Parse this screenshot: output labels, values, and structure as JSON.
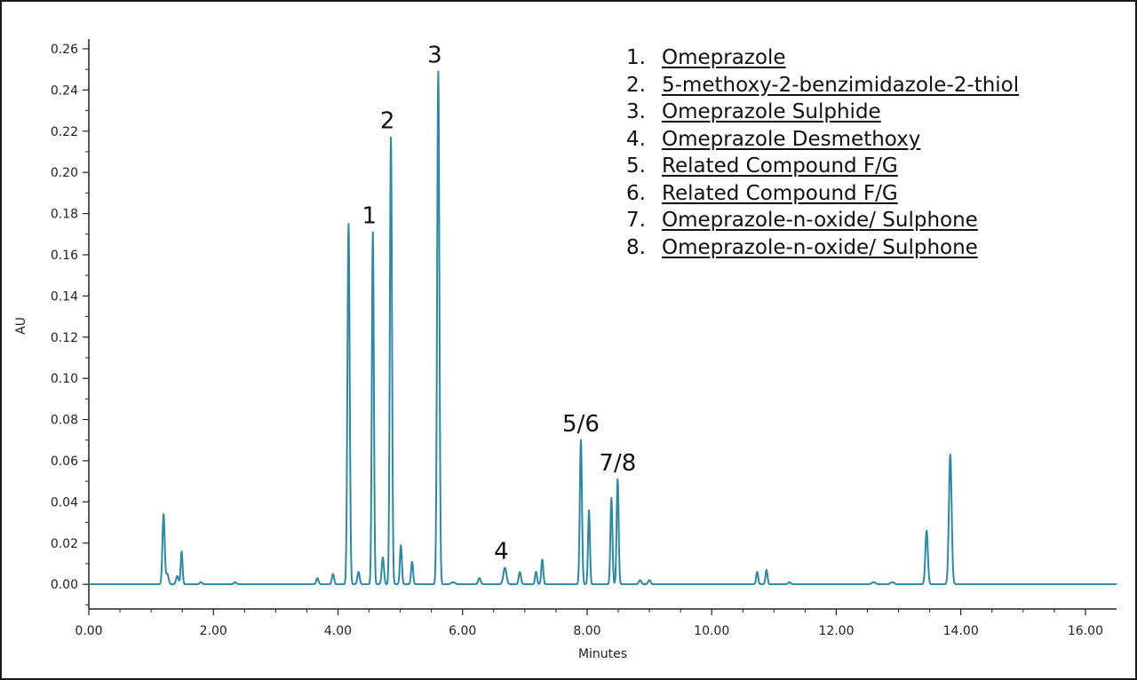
{
  "chart_data": {
    "type": "line",
    "xlabel": "Minutes",
    "ylabel": "AU",
    "xlim": [
      0,
      16.5
    ],
    "ylim": [
      -0.012,
      0.263
    ],
    "x_ticks": [
      "0.00",
      "2.00",
      "4.00",
      "6.00",
      "8.00",
      "10.00",
      "12.00",
      "14.00",
      "16.00"
    ],
    "y_ticks": [
      "0.00",
      "0.02",
      "0.04",
      "0.06",
      "0.08",
      "0.10",
      "0.12",
      "0.14",
      "0.16",
      "0.18",
      "0.20",
      "0.22",
      "0.24",
      "0.26"
    ],
    "line_color": "#2a8aa6",
    "baseline": 0.0,
    "peaks": [
      {
        "x": 1.2,
        "y": 0.034,
        "w": 0.018
      },
      {
        "x": 1.26,
        "y": 0.005,
        "w": 0.02
      },
      {
        "x": 1.42,
        "y": 0.004,
        "w": 0.02
      },
      {
        "x": 1.49,
        "y": 0.016,
        "w": 0.015
      },
      {
        "x": 1.8,
        "y": 0.001,
        "w": 0.02
      },
      {
        "x": 2.35,
        "y": 0.001,
        "w": 0.02
      },
      {
        "x": 3.67,
        "y": 0.003,
        "w": 0.018
      },
      {
        "x": 3.92,
        "y": 0.005,
        "w": 0.018
      },
      {
        "x": 4.17,
        "y": 0.175,
        "w": 0.018
      },
      {
        "x": 4.33,
        "y": 0.006,
        "w": 0.018
      },
      {
        "x": 4.56,
        "y": 0.171,
        "w": 0.016
      },
      {
        "x": 4.72,
        "y": 0.013,
        "w": 0.018
      },
      {
        "x": 4.85,
        "y": 0.217,
        "w": 0.017
      },
      {
        "x": 5.01,
        "y": 0.019,
        "w": 0.016
      },
      {
        "x": 5.19,
        "y": 0.011,
        "w": 0.016
      },
      {
        "x": 5.61,
        "y": 0.249,
        "w": 0.018
      },
      {
        "x": 5.85,
        "y": 0.001,
        "w": 0.03
      },
      {
        "x": 6.27,
        "y": 0.003,
        "w": 0.02
      },
      {
        "x": 6.68,
        "y": 0.008,
        "w": 0.025
      },
      {
        "x": 6.92,
        "y": 0.006,
        "w": 0.018
      },
      {
        "x": 7.18,
        "y": 0.006,
        "w": 0.016
      },
      {
        "x": 7.28,
        "y": 0.012,
        "w": 0.016
      },
      {
        "x": 7.9,
        "y": 0.07,
        "w": 0.017
      },
      {
        "x": 8.03,
        "y": 0.036,
        "w": 0.015
      },
      {
        "x": 8.39,
        "y": 0.042,
        "w": 0.016
      },
      {
        "x": 8.49,
        "y": 0.051,
        "w": 0.016
      },
      {
        "x": 8.85,
        "y": 0.002,
        "w": 0.02
      },
      {
        "x": 9.0,
        "y": 0.002,
        "w": 0.02
      },
      {
        "x": 10.73,
        "y": 0.006,
        "w": 0.016
      },
      {
        "x": 10.88,
        "y": 0.007,
        "w": 0.016
      },
      {
        "x": 11.25,
        "y": 0.001,
        "w": 0.02
      },
      {
        "x": 12.6,
        "y": 0.001,
        "w": 0.03
      },
      {
        "x": 12.9,
        "y": 0.001,
        "w": 0.03
      },
      {
        "x": 13.45,
        "y": 0.026,
        "w": 0.02
      },
      {
        "x": 13.83,
        "y": 0.063,
        "w": 0.022
      }
    ],
    "annotations": [
      {
        "text": "1",
        "x": 4.56,
        "y": 0.171
      },
      {
        "text": "2",
        "x": 4.85,
        "y": 0.217
      },
      {
        "text": "3",
        "x": 5.61,
        "y": 0.249
      },
      {
        "text": "4",
        "x": 6.68,
        "y": 0.008
      },
      {
        "text": "5/6",
        "x": 7.9,
        "y": 0.07
      },
      {
        "text": "7/8",
        "x": 8.49,
        "y": 0.051
      }
    ],
    "legend": {
      "placement": "top-right",
      "items": [
        {
          "num": "1.",
          "name": "Omeprazole"
        },
        {
          "num": "2.",
          "name": "5-methoxy-2-benzimidazole-2-thiol"
        },
        {
          "num": "3.",
          "name": "Omeprazole Sulphide"
        },
        {
          "num": "4.",
          "name": "Omeprazole Desmethoxy"
        },
        {
          "num": "5.",
          "name": "Related Compound F/G"
        },
        {
          "num": "6.",
          "name": "Related Compound F/G"
        },
        {
          "num": "7.",
          "name": "Omeprazole-n-oxide/ Sulphone"
        },
        {
          "num": "8.",
          "name": "Omeprazole-n-oxide/ Sulphone"
        }
      ]
    }
  }
}
